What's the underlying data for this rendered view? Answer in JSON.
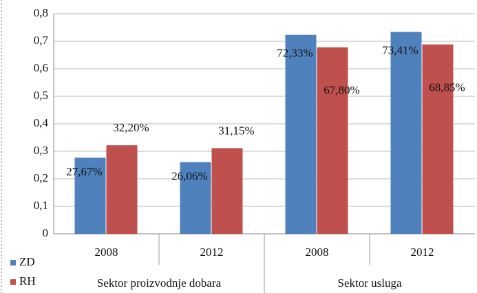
{
  "chart_data": {
    "type": "bar",
    "categories": [
      "2008",
      "2012",
      "2008",
      "2012"
    ],
    "groups": [
      "Sektor proizvodnje dobara",
      "Sektor usluga"
    ],
    "series": [
      {
        "name": "ZD",
        "color": "#4f81bd",
        "values": [
          0.2767,
          0.2606,
          0.7233,
          0.7341
        ],
        "value_labels": [
          "27,67%",
          "26,06%",
          "72,33%",
          "73,41%"
        ]
      },
      {
        "name": "RH",
        "color": "#c0504d",
        "values": [
          0.322,
          0.3115,
          0.678,
          0.6885
        ],
        "value_labels": [
          "32,20%",
          "31,15%",
          "67,80%",
          "68,85%"
        ]
      }
    ],
    "ylim": [
      0,
      0.8
    ],
    "yticks": [
      0,
      {
        "value": 0.1,
        "label": "0,1"
      },
      {
        "value": 0.2,
        "label": "0,2"
      },
      {
        "value": 0.3,
        "label": "0,3"
      },
      {
        "value": 0.4,
        "label": "0,4"
      },
      {
        "value": 0.5,
        "label": "0,5"
      },
      {
        "value": 0.6,
        "label": "0,6"
      },
      {
        "value": 0.7,
        "label": "0,7"
      },
      {
        "value": 0.8,
        "label": "0,8"
      }
    ],
    "grid": true
  }
}
